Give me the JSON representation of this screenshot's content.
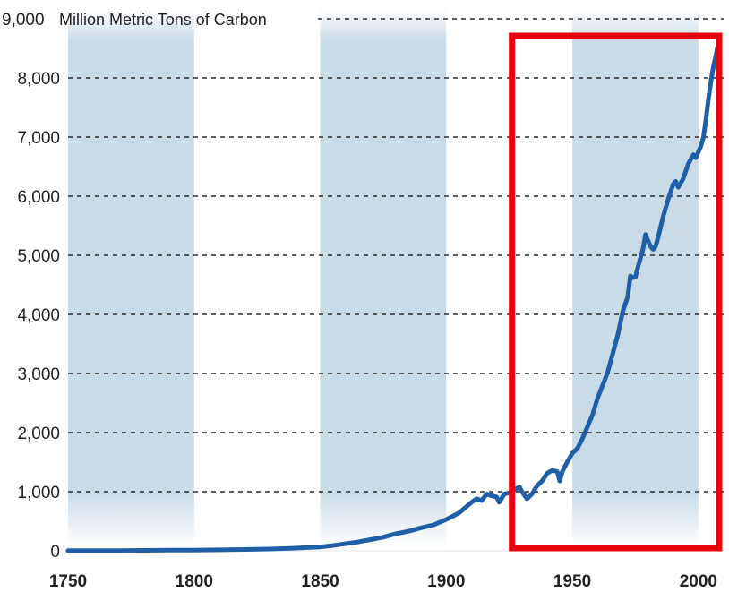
{
  "chart_data": {
    "type": "line",
    "title": "",
    "unit_label": "Million Metric Tons of Carbon",
    "xlabel": "",
    "ylabel": "",
    "xlim": [
      1750,
      2010
    ],
    "ylim": [
      0,
      9000
    ],
    "x_ticks": [
      1750,
      1800,
      1850,
      1900,
      1950,
      2000
    ],
    "x_tick_labels": [
      "1750",
      "1800",
      "1850",
      "1900",
      "1950",
      "2000"
    ],
    "y_ticks": [
      0,
      1000,
      2000,
      3000,
      4000,
      5000,
      6000,
      7000,
      8000,
      9000
    ],
    "y_tick_labels": [
      "0",
      "1,000",
      "2,000",
      "3,000",
      "4,000",
      "5,000",
      "6,000",
      "7,000",
      "8,000",
      "9,000"
    ],
    "grid": "horizontal dashed",
    "shaded_bands": [
      [
        1750,
        1800
      ],
      [
        1850,
        1900
      ],
      [
        1950,
        2000
      ]
    ],
    "series": [
      {
        "color": "#1f5fa8",
        "x": [
          1750,
          1760,
          1770,
          1780,
          1790,
          1800,
          1810,
          1820,
          1830,
          1840,
          1850,
          1855,
          1860,
          1865,
          1870,
          1875,
          1880,
          1885,
          1890,
          1895,
          1900,
          1905,
          1910,
          1912,
          1914,
          1916,
          1918,
          1920,
          1921,
          1923,
          1925,
          1927,
          1929,
          1930,
          1932,
          1934,
          1936,
          1938,
          1940,
          1942,
          1944,
          1945,
          1946,
          1948,
          1950,
          1952,
          1954,
          1956,
          1958,
          1960,
          1962,
          1964,
          1966,
          1968,
          1970,
          1972,
          1973,
          1974,
          1975,
          1976,
          1978,
          1979,
          1980,
          1981,
          1982,
          1983,
          1984,
          1986,
          1988,
          1990,
          1991,
          1992,
          1994,
          1996,
          1998,
          1999,
          2000,
          2001,
          2002,
          2003,
          2004,
          2005,
          2006,
          2007,
          2008
        ],
        "values": [
          3,
          4,
          5,
          7,
          10,
          12,
          16,
          22,
          30,
          45,
          65,
          90,
          120,
          150,
          190,
          230,
          290,
          330,
          390,
          440,
          530,
          640,
          820,
          880,
          850,
          960,
          930,
          910,
          820,
          960,
          980,
          1030,
          1080,
          1000,
          880,
          960,
          1100,
          1180,
          1310,
          1360,
          1340,
          1180,
          1340,
          1500,
          1650,
          1730,
          1900,
          2100,
          2300,
          2580,
          2800,
          3020,
          3330,
          3650,
          4050,
          4300,
          4650,
          4620,
          4630,
          4800,
          5100,
          5350,
          5250,
          5150,
          5100,
          5150,
          5300,
          5650,
          5950,
          6200,
          6250,
          6150,
          6300,
          6550,
          6700,
          6650,
          6750,
          6850,
          7000,
          7300,
          7650,
          7950,
          8200,
          8400,
          8600
        ]
      }
    ]
  },
  "annotation": {
    "highlight_box_color": "#e8000e",
    "highlight_x_range": [
      1925,
      2010
    ]
  }
}
